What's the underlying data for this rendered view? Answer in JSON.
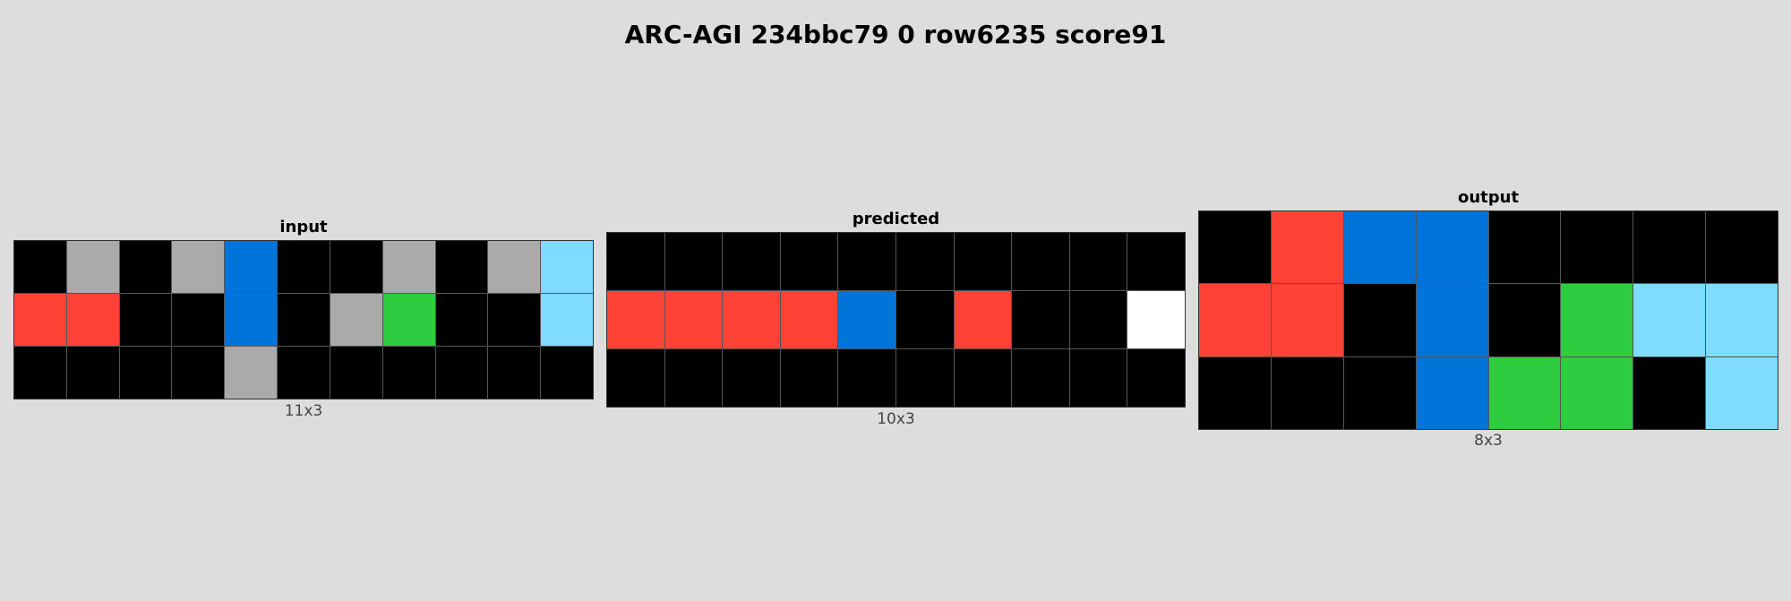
{
  "title": "ARC-AGI 234bbc79 0 row6235 score91",
  "palette": {
    "0": "#000000",
    "1": "#0074d9",
    "2": "#ff4136",
    "3": "#2ecc40",
    "5": "#aaaaaa",
    "8": "#7fdbff",
    "W": "#ffffff"
  },
  "panels": {
    "input": {
      "label": "input",
      "dims": "11x3",
      "cols": 11,
      "rows": [
        [
          "0",
          "5",
          "0",
          "5",
          "1",
          "0",
          "0",
          "5",
          "0",
          "5",
          "8"
        ],
        [
          "2",
          "2",
          "0",
          "0",
          "1",
          "0",
          "5",
          "3",
          "0",
          "0",
          "8"
        ],
        [
          "0",
          "0",
          "0",
          "0",
          "5",
          "0",
          "0",
          "0",
          "0",
          "0",
          "0"
        ]
      ]
    },
    "predicted": {
      "label": "predicted",
      "dims": "10x3",
      "cols": 10,
      "rows": [
        [
          "0",
          "0",
          "0",
          "0",
          "0",
          "0",
          "0",
          "0",
          "0",
          "0"
        ],
        [
          "2",
          "2",
          "2",
          "2",
          "1",
          "0",
          "2",
          "0",
          "0",
          "W"
        ],
        [
          "0",
          "0",
          "0",
          "0",
          "0",
          "0",
          "0",
          "0",
          "0",
          "0"
        ]
      ]
    },
    "output": {
      "label": "output",
      "dims": "8x3",
      "cols": 8,
      "rows": [
        [
          "0",
          "2",
          "1",
          "1",
          "0",
          "0",
          "0",
          "0"
        ],
        [
          "2",
          "2",
          "0",
          "1",
          "0",
          "3",
          "8",
          "8"
        ],
        [
          "0",
          "0",
          "0",
          "1",
          "3",
          "3",
          "0",
          "8"
        ]
      ]
    }
  }
}
